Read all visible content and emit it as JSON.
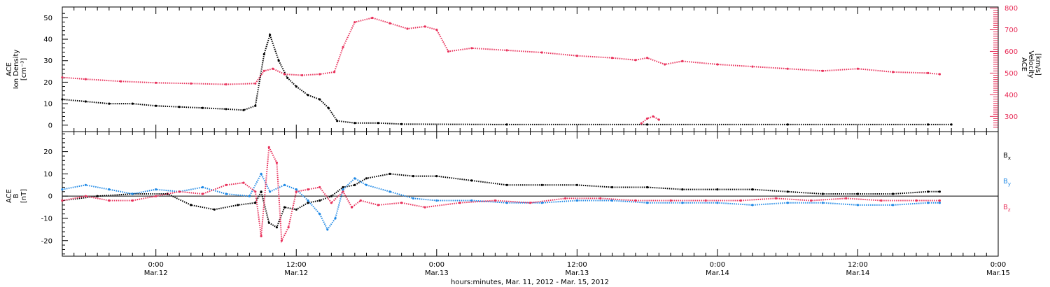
{
  "colors": {
    "black": "#000000",
    "pink": "#e8305a",
    "blue": "#1e88e5"
  },
  "chart_data": [
    {
      "type": "scatter",
      "panel": "top",
      "ylabel_left": [
        "ACE",
        "Ion Density",
        "[cm⁻³]"
      ],
      "ylabel_right": [
        "ACE",
        "Velocity",
        "[km/s]"
      ],
      "left_axis": {
        "ylim": [
          -3,
          55
        ],
        "ticks": [
          0,
          10,
          20,
          30,
          40,
          50
        ]
      },
      "right_axis": {
        "ylim": [
          230,
          805
        ],
        "ticks": [
          300,
          400,
          500,
          600,
          700,
          800
        ]
      },
      "series": [
        {
          "axis": "left",
          "color": "black",
          "points": [
            [
              "2012-03-11T16:00",
              12
            ],
            [
              "2012-03-11T18:00",
              11
            ],
            [
              "2012-03-11T20:00",
              10
            ],
            [
              "2012-03-11T22:00",
              10
            ],
            [
              "2012-03-12T00:00",
              9
            ],
            [
              "2012-03-12T02:00",
              8.5
            ],
            [
              "2012-03-12T04:00",
              8
            ],
            [
              "2012-03-12T06:00",
              7.5
            ],
            [
              "2012-03-12T07:30",
              7
            ],
            [
              "2012-03-12T08:30",
              9
            ],
            [
              "2012-03-12T09:15",
              33
            ],
            [
              "2012-03-12T09:45",
              42
            ],
            [
              "2012-03-12T10:30",
              30
            ],
            [
              "2012-03-12T11:15",
              22
            ],
            [
              "2012-03-12T12:00",
              18
            ],
            [
              "2012-03-12T13:00",
              14
            ],
            [
              "2012-03-12T14:00",
              12
            ],
            [
              "2012-03-12T14:45",
              8
            ],
            [
              "2012-03-12T15:30",
              2
            ],
            [
              "2012-03-12T17:00",
              1
            ],
            [
              "2012-03-12T19:00",
              1
            ],
            [
              "2012-03-12T21:00",
              0.5
            ],
            [
              "2012-03-13T06:00",
              0.3
            ],
            [
              "2012-03-13T18:00",
              0.3
            ],
            [
              "2012-03-14T06:00",
              0.3
            ],
            [
              "2012-03-14T18:00",
              0.3
            ],
            [
              "2012-03-14T20:00",
              0.3
            ]
          ]
        },
        {
          "axis": "right",
          "color": "pink",
          "points": [
            [
              "2012-03-11T16:00",
              480
            ],
            [
              "2012-03-11T18:00",
              472
            ],
            [
              "2012-03-11T21:00",
              462
            ],
            [
              "2012-03-12T00:00",
              455
            ],
            [
              "2012-03-12T03:00",
              452
            ],
            [
              "2012-03-12T06:00",
              448
            ],
            [
              "2012-03-12T08:30",
              452
            ],
            [
              "2012-03-12T09:15",
              510
            ],
            [
              "2012-03-12T10:00",
              520
            ],
            [
              "2012-03-12T11:00",
              495
            ],
            [
              "2012-03-12T12:30",
              490
            ],
            [
              "2012-03-12T14:00",
              495
            ],
            [
              "2012-03-12T15:15",
              505
            ],
            [
              "2012-03-12T16:00",
              620
            ],
            [
              "2012-03-12T17:00",
              735
            ],
            [
              "2012-03-12T18:30",
              755
            ],
            [
              "2012-03-12T20:00",
              730
            ],
            [
              "2012-03-12T21:30",
              705
            ],
            [
              "2012-03-12T23:00",
              715
            ],
            [
              "2012-03-13T00:00",
              700
            ],
            [
              "2012-03-13T01:00",
              600
            ],
            [
              "2012-03-13T03:00",
              615
            ],
            [
              "2012-03-13T06:00",
              605
            ],
            [
              "2012-03-13T09:00",
              595
            ],
            [
              "2012-03-13T12:00",
              580
            ],
            [
              "2012-03-13T15:00",
              570
            ],
            [
              "2012-03-13T17:00",
              560
            ],
            [
              "2012-03-13T18:00",
              570
            ],
            [
              "2012-03-13T19:30",
              540
            ],
            [
              "2012-03-13T21:00",
              555
            ],
            [
              "2012-03-14T00:00",
              540
            ],
            [
              "2012-03-14T03:00",
              530
            ],
            [
              "2012-03-14T06:00",
              520
            ],
            [
              "2012-03-14T09:00",
              510
            ],
            [
              "2012-03-14T12:00",
              520
            ],
            [
              "2012-03-14T15:00",
              505
            ],
            [
              "2012-03-14T18:00",
              500
            ],
            [
              "2012-03-14T19:00",
              495
            ]
          ]
        },
        {
          "axis": "right",
          "color": "pink",
          "points": [
            [
              "2012-03-13T17:30",
              268
            ],
            [
              "2012-03-13T18:00",
              290
            ],
            [
              "2012-03-13T18:30",
              300
            ],
            [
              "2012-03-13T19:00",
              285
            ]
          ]
        }
      ]
    },
    {
      "type": "scatter",
      "panel": "bottom",
      "ylabel_left": [
        "ACE",
        "B",
        "[nT]"
      ],
      "ylim": [
        -27,
        29
      ],
      "ticks": [
        -20,
        -10,
        0,
        10,
        20
      ],
      "zero_line": true,
      "legend": [
        "Bx",
        "By",
        "Bz"
      ],
      "legend_placement": "right",
      "series": [
        {
          "name": "Bx",
          "color": "black",
          "points": [
            [
              "2012-03-11T16:00",
              -2
            ],
            [
              "2012-03-11T19:00",
              0
            ],
            [
              "2012-03-11T22:00",
              1
            ],
            [
              "2012-03-12T01:00",
              1
            ],
            [
              "2012-03-12T03:00",
              -4
            ],
            [
              "2012-03-12T05:00",
              -6
            ],
            [
              "2012-03-12T07:00",
              -4
            ],
            [
              "2012-03-12T08:30",
              -3
            ],
            [
              "2012-03-12T09:00",
              2
            ],
            [
              "2012-03-12T09:40",
              -12
            ],
            [
              "2012-03-12T10:20",
              -14
            ],
            [
              "2012-03-12T11:00",
              -5
            ],
            [
              "2012-03-12T12:00",
              -6
            ],
            [
              "2012-03-12T13:00",
              -3
            ],
            [
              "2012-03-12T14:00",
              -2
            ],
            [
              "2012-03-12T15:00",
              0
            ],
            [
              "2012-03-12T16:00",
              4
            ],
            [
              "2012-03-12T17:00",
              5
            ],
            [
              "2012-03-12T18:00",
              8
            ],
            [
              "2012-03-12T20:00",
              10
            ],
            [
              "2012-03-12T22:00",
              9
            ],
            [
              "2012-03-13T00:00",
              9
            ],
            [
              "2012-03-13T03:00",
              7
            ],
            [
              "2012-03-13T06:00",
              5
            ],
            [
              "2012-03-13T09:00",
              5
            ],
            [
              "2012-03-13T12:00",
              5
            ],
            [
              "2012-03-13T15:00",
              4
            ],
            [
              "2012-03-13T18:00",
              4
            ],
            [
              "2012-03-13T21:00",
              3
            ],
            [
              "2012-03-14T00:00",
              3
            ],
            [
              "2012-03-14T03:00",
              3
            ],
            [
              "2012-03-14T06:00",
              2
            ],
            [
              "2012-03-14T09:00",
              1
            ],
            [
              "2012-03-14T12:00",
              1
            ],
            [
              "2012-03-14T15:00",
              1
            ],
            [
              "2012-03-14T18:00",
              2
            ],
            [
              "2012-03-14T19:00",
              2
            ]
          ]
        },
        {
          "name": "By",
          "color": "blue",
          "points": [
            [
              "2012-03-11T16:00",
              3
            ],
            [
              "2012-03-11T18:00",
              5
            ],
            [
              "2012-03-11T20:00",
              3
            ],
            [
              "2012-03-11T22:00",
              1
            ],
            [
              "2012-03-12T00:00",
              3
            ],
            [
              "2012-03-12T02:00",
              2
            ],
            [
              "2012-03-12T04:00",
              4
            ],
            [
              "2012-03-12T06:00",
              1
            ],
            [
              "2012-03-12T08:00",
              0
            ],
            [
              "2012-03-12T09:00",
              10
            ],
            [
              "2012-03-12T09:45",
              2
            ],
            [
              "2012-03-12T11:00",
              5
            ],
            [
              "2012-03-12T12:00",
              3
            ],
            [
              "2012-03-12T13:00",
              -2
            ],
            [
              "2012-03-12T14:00",
              -8
            ],
            [
              "2012-03-12T14:40",
              -15
            ],
            [
              "2012-03-12T15:20",
              -10
            ],
            [
              "2012-03-12T16:00",
              3
            ],
            [
              "2012-03-12T17:00",
              8
            ],
            [
              "2012-03-12T18:00",
              5
            ],
            [
              "2012-03-12T20:00",
              2
            ],
            [
              "2012-03-12T22:00",
              -1
            ],
            [
              "2012-03-13T00:00",
              -2
            ],
            [
              "2012-03-13T03:00",
              -2
            ],
            [
              "2012-03-13T06:00",
              -3
            ],
            [
              "2012-03-13T09:00",
              -3
            ],
            [
              "2012-03-13T12:00",
              -2
            ],
            [
              "2012-03-13T15:00",
              -2
            ],
            [
              "2012-03-13T18:00",
              -3
            ],
            [
              "2012-03-13T21:00",
              -3
            ],
            [
              "2012-03-14T00:00",
              -3
            ],
            [
              "2012-03-14T03:00",
              -4
            ],
            [
              "2012-03-14T06:00",
              -3
            ],
            [
              "2012-03-14T09:00",
              -3
            ],
            [
              "2012-03-14T12:00",
              -4
            ],
            [
              "2012-03-14T15:00",
              -4
            ],
            [
              "2012-03-14T18:00",
              -3
            ],
            [
              "2012-03-14T19:00",
              -3
            ]
          ]
        },
        {
          "name": "Bz",
          "color": "pink",
          "points": [
            [
              "2012-03-11T16:00",
              -2
            ],
            [
              "2012-03-11T18:00",
              0
            ],
            [
              "2012-03-11T20:00",
              -2
            ],
            [
              "2012-03-11T22:00",
              -2
            ],
            [
              "2012-03-12T00:00",
              0
            ],
            [
              "2012-03-12T02:00",
              2
            ],
            [
              "2012-03-12T04:00",
              1
            ],
            [
              "2012-03-12T06:00",
              5
            ],
            [
              "2012-03-12T07:30",
              6
            ],
            [
              "2012-03-12T08:30",
              2
            ],
            [
              "2012-03-12T09:00",
              -18
            ],
            [
              "2012-03-12T09:40",
              22
            ],
            [
              "2012-03-12T10:20",
              15
            ],
            [
              "2012-03-12T10:45",
              -20
            ],
            [
              "2012-03-12T11:20",
              -14
            ],
            [
              "2012-03-12T12:00",
              2
            ],
            [
              "2012-03-12T13:00",
              3
            ],
            [
              "2012-03-12T14:00",
              4
            ],
            [
              "2012-03-12T15:00",
              -3
            ],
            [
              "2012-03-12T16:00",
              2
            ],
            [
              "2012-03-12T16:45",
              -5
            ],
            [
              "2012-03-12T17:30",
              -2
            ],
            [
              "2012-03-12T19:00",
              -4
            ],
            [
              "2012-03-12T21:00",
              -3
            ],
            [
              "2012-03-12T23:00",
              -5
            ],
            [
              "2012-03-13T02:00",
              -3
            ],
            [
              "2012-03-13T05:00",
              -2
            ],
            [
              "2012-03-13T08:00",
              -3
            ],
            [
              "2012-03-13T11:00",
              -1
            ],
            [
              "2012-03-13T14:00",
              -1
            ],
            [
              "2012-03-13T17:00",
              -2
            ],
            [
              "2012-03-13T20:00",
              -2
            ],
            [
              "2012-03-13T23:00",
              -2
            ],
            [
              "2012-03-14T02:00",
              -2
            ],
            [
              "2012-03-14T05:00",
              -1
            ],
            [
              "2012-03-14T08:00",
              -2
            ],
            [
              "2012-03-14T11:00",
              -1
            ],
            [
              "2012-03-14T14:00",
              -2
            ],
            [
              "2012-03-14T17:00",
              -2
            ],
            [
              "2012-03-14T19:00",
              -2
            ]
          ]
        }
      ]
    }
  ],
  "x_axis": {
    "range": [
      "2012-03-11T16:00",
      "2012-03-15T00:00"
    ],
    "ticks": [
      {
        "time": "2012-03-12T00:00",
        "line1": "0:00",
        "line2": "Mar.12"
      },
      {
        "time": "2012-03-12T12:00",
        "line1": "12:00",
        "line2": "Mar.12"
      },
      {
        "time": "2012-03-13T00:00",
        "line1": "0:00",
        "line2": "Mar.13"
      },
      {
        "time": "2012-03-13T12:00",
        "line1": "12:00",
        "line2": "Mar.13"
      },
      {
        "time": "2012-03-14T00:00",
        "line1": "0:00",
        "line2": "Mar.14"
      },
      {
        "time": "2012-03-14T12:00",
        "line1": "12:00",
        "line2": "Mar.14"
      },
      {
        "time": "2012-03-15T00:00",
        "line1": "0:00",
        "line2": "Mar.15"
      }
    ],
    "label": "hours:minutes, Mar. 11, 2012 - Mar. 15, 2012"
  }
}
